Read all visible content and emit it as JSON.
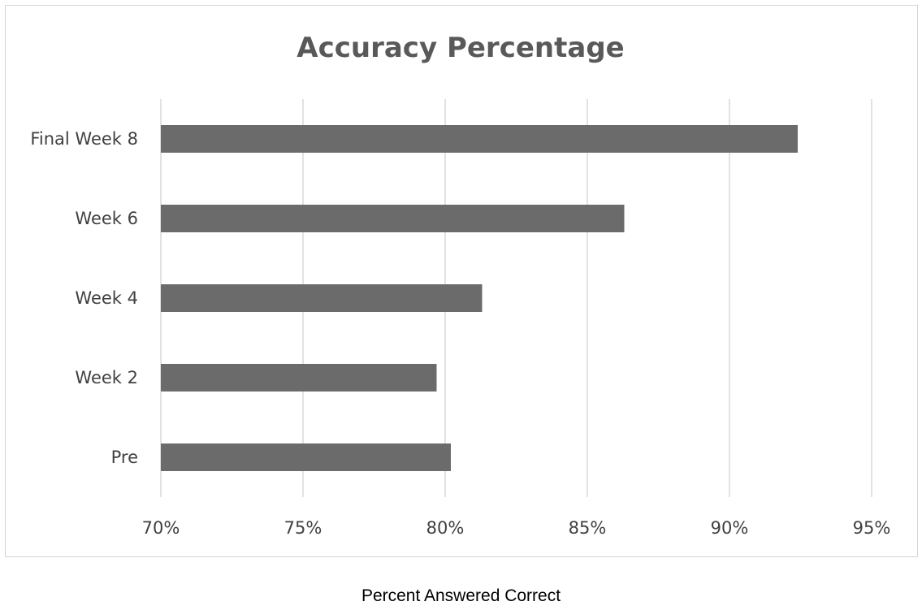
{
  "chart_data": {
    "type": "bar",
    "orientation": "horizontal",
    "title": "Accuracy Percentage",
    "xlabel": "Percent Answered Correct",
    "ylabel": "",
    "categories": [
      "Final Week 8",
      "Week 6",
      "Week 4",
      "Week 2",
      "Pre"
    ],
    "values": [
      92.4,
      86.3,
      81.3,
      79.7,
      80.2
    ],
    "xlim": [
      70,
      95
    ],
    "x_ticks": [
      70,
      75,
      80,
      85,
      90,
      95
    ],
    "x_tick_labels": [
      "70%",
      "75%",
      "80%",
      "85%",
      "90%",
      "95%"
    ],
    "grid": true,
    "legend": "none",
    "bar_color": "#6b6b6b"
  }
}
